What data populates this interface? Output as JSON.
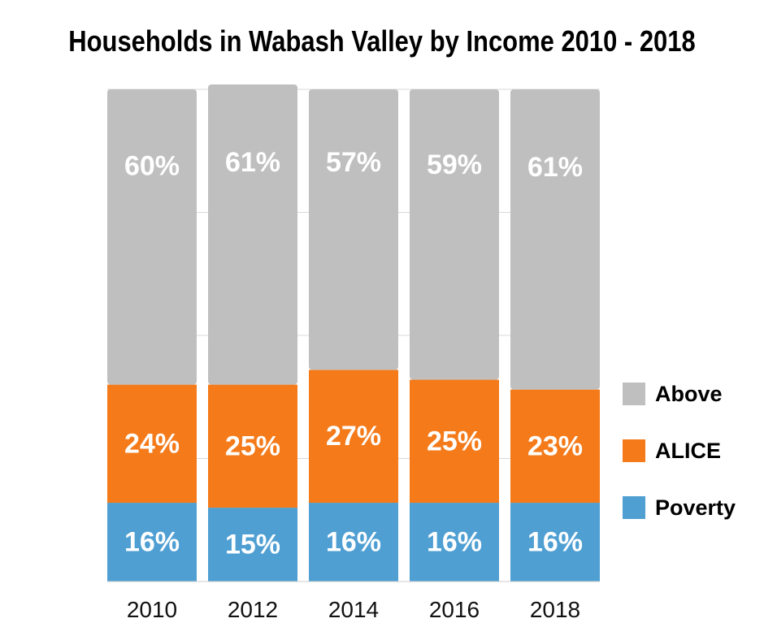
{
  "chart_data": {
    "type": "bar",
    "stacked": true,
    "title": "Households in Wabash Valley by Income 2010 - 2018",
    "categories": [
      "2010",
      "2012",
      "2014",
      "2016",
      "2018"
    ],
    "series": [
      {
        "name": "Poverty",
        "color": "#4f9fd3",
        "values": [
          16,
          15,
          16,
          16,
          16
        ],
        "labels": [
          "16%",
          "15%",
          "16%",
          "16%",
          "16%"
        ]
      },
      {
        "name": "ALICE",
        "color": "#f47a1a",
        "values": [
          24,
          25,
          27,
          25,
          23
        ],
        "labels": [
          "24%",
          "25%",
          "27%",
          "25%",
          "23%"
        ]
      },
      {
        "name": "Above",
        "color": "#bfbfbf",
        "values": [
          60,
          61,
          57,
          59,
          61
        ],
        "labels": [
          "60%",
          "61%",
          "57%",
          "59%",
          "61%"
        ]
      }
    ],
    "legend": [
      "Above",
      "ALICE",
      "Poverty"
    ],
    "legend_position": "right",
    "ylim": [
      0,
      100
    ],
    "grid": true
  }
}
